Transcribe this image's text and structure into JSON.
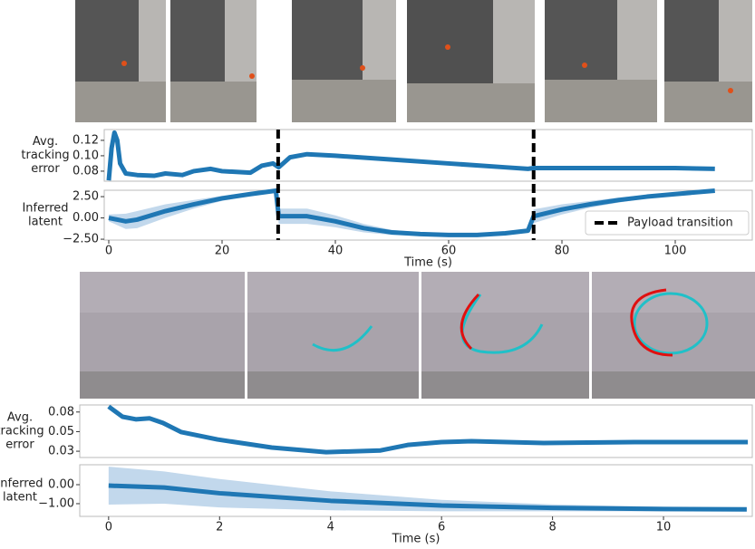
{
  "chart_data": [
    {
      "type": "line",
      "y_label": [
        "Avg.",
        "tracking",
        "error"
      ],
      "xlim": [
        -0.8,
        113.6
      ],
      "ylim": [
        0.067,
        0.134
      ],
      "yticks": [
        0.12,
        {
          "value": 0.1,
          "label": "0.10"
        },
        0.08
      ],
      "series": [
        {
          "color": "#1f77b4",
          "x": [
            0,
            0.5,
            1,
            1.5,
            2,
            3,
            5,
            8,
            10,
            13,
            15,
            18,
            20,
            25,
            27,
            29,
            30,
            32,
            35,
            40,
            50,
            60,
            70,
            74,
            75,
            80,
            90,
            100,
            107
          ],
          "values": [
            0.068,
            0.11,
            0.13,
            0.12,
            0.09,
            0.077,
            0.075,
            0.074,
            0.077,
            0.075,
            0.08,
            0.083,
            0.08,
            0.078,
            0.087,
            0.09,
            0.085,
            0.098,
            0.102,
            0.1,
            0.095,
            0.09,
            0.085,
            0.083,
            0.084,
            0.084,
            0.084,
            0.084,
            0.083
          ]
        }
      ]
    },
    {
      "type": "line",
      "y_label": [
        "Inferred",
        "latent"
      ],
      "x_label": "Time (s)",
      "xlim": [
        -0.8,
        113.6
      ],
      "ylim": [
        -2.6,
        3.25
      ],
      "xticks": [
        0,
        20,
        40,
        60,
        80,
        100
      ],
      "yticks": [
        {
          "value": 2.5,
          "label": "2.50"
        },
        {
          "value": 0,
          "label": "0.00"
        },
        {
          "value": -2.5,
          "label": "−2.50"
        }
      ],
      "legend": "lower right",
      "vlines": {
        "name": "Payload transition",
        "color": "#000000",
        "x": [
          29.9,
          75.0
        ]
      },
      "series": [
        {
          "color": "#1f77b4",
          "band_color": "#c2d8ec",
          "x": [
            0,
            3,
            5,
            10,
            15,
            20,
            25,
            29.5,
            30,
            35,
            40,
            45,
            50,
            55,
            60,
            65,
            70,
            74,
            75,
            80,
            85,
            90,
            95,
            100,
            107
          ],
          "values": [
            0,
            -0.4,
            -0.2,
            0.8,
            1.6,
            2.3,
            2.8,
            3.2,
            0.2,
            0.2,
            -0.4,
            -1.2,
            -1.7,
            -1.9,
            -2.0,
            -2.0,
            -1.8,
            -1.5,
            0.2,
            1.0,
            1.6,
            2.1,
            2.5,
            2.8,
            3.2
          ],
          "error": [
            0.4,
            0.9,
            1.0,
            0.8,
            0.5,
            0.3,
            0.2,
            0.15,
            0.9,
            0.9,
            0.7,
            0.5,
            0.3,
            0.2,
            0.15,
            0.12,
            0.12,
            0.1,
            0.8,
            0.6,
            0.4,
            0.3,
            0.2,
            0.15,
            0.1
          ]
        }
      ]
    },
    {
      "type": "line",
      "y_label": [
        "Avg.",
        "tracking",
        "error"
      ],
      "xlim": [
        -0.52,
        11.6
      ],
      "ylim": [
        0.017,
        0.084
      ],
      "yticks": [
        {
          "value": 0.075,
          "label": "0.08"
        },
        0.05,
        {
          "value": 0.025,
          "label": "0.03"
        }
      ],
      "series": [
        {
          "color": "#1f77b4",
          "x": [
            0,
            0.25,
            0.49,
            0.74,
            0.98,
            1.31,
            1.96,
            2.94,
            3.92,
            4.9,
            5.39,
            6.0,
            6.54,
            7.84,
            9.48,
            11.52
          ],
          "values": [
            0.082,
            0.069,
            0.0657,
            0.0669,
            0.061,
            0.0494,
            0.04,
            0.0297,
            0.0238,
            0.026,
            0.033,
            0.0366,
            0.0378,
            0.0355,
            0.0366,
            0.0366
          ]
        }
      ]
    },
    {
      "type": "line",
      "y_label": [
        "Inferred",
        "latent"
      ],
      "x_label": "Time (s)",
      "xlim": [
        -0.52,
        11.6
      ],
      "ylim": [
        -1.67,
        1.05
      ],
      "xticks": [
        0,
        2,
        4,
        6,
        8,
        10
      ],
      "yticks": [
        {
          "value": 0,
          "label": "0.00"
        },
        {
          "value": -1,
          "label": "−1.00"
        }
      ],
      "series": [
        {
          "color": "#1f77b4",
          "band_color": "#c2d8ec",
          "x": [
            0,
            1,
            2,
            4,
            6,
            8,
            10,
            11.5
          ],
          "values": [
            -0.05,
            -0.15,
            -0.45,
            -0.85,
            -1.1,
            -1.22,
            -1.28,
            -1.3
          ],
          "error": [
            1.0,
            0.85,
            0.75,
            0.5,
            0.3,
            0.18,
            0.12,
            0.08
          ]
        }
      ]
    }
  ]
}
